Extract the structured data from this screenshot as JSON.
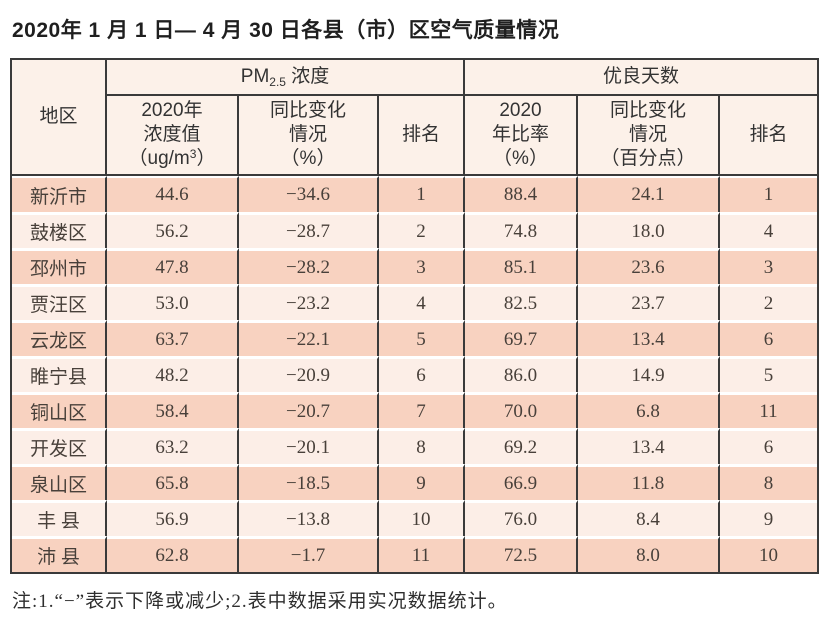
{
  "title": "2020年 1 月 1 日— 4 月 30 日各县（市）区空气质量情况",
  "note": "注:1.“−”表示下降或减少;2.表中数据采用实况数据统计。",
  "table": {
    "region_header": "地区",
    "groups": {
      "pm25": {
        "prefix": "PM",
        "subscript": "2.5",
        "suffix": " 浓度"
      },
      "good_days": "优良天数"
    },
    "subheaders": {
      "pm_value": {
        "line1": "2020年",
        "line2": "浓度值",
        "line3_pre": "（ug/m",
        "line3_sup": "3",
        "line3_post": "）"
      },
      "pm_change": {
        "line1": "同比变化",
        "line2": "情况",
        "line3": "（%）"
      },
      "pm_rank": "排名",
      "good_ratio": {
        "line1": "2020",
        "line2": "年比率",
        "line3": "（%）"
      },
      "good_change": {
        "line1": "同比变化",
        "line2": "情况",
        "line3": "（百分点）"
      },
      "good_rank": "排名"
    },
    "rows": [
      {
        "region": "新沂市",
        "pm_value": "44.6",
        "pm_change": "−34.6",
        "pm_rank": "1",
        "good_ratio": "88.4",
        "good_change": "24.1",
        "good_rank": "1"
      },
      {
        "region": "鼓楼区",
        "pm_value": "56.2",
        "pm_change": "−28.7",
        "pm_rank": "2",
        "good_ratio": "74.8",
        "good_change": "18.0",
        "good_rank": "4"
      },
      {
        "region": "邳州市",
        "pm_value": "47.8",
        "pm_change": "−28.2",
        "pm_rank": "3",
        "good_ratio": "85.1",
        "good_change": "23.6",
        "good_rank": "3"
      },
      {
        "region": "贾汪区",
        "pm_value": "53.0",
        "pm_change": "−23.2",
        "pm_rank": "4",
        "good_ratio": "82.5",
        "good_change": "23.7",
        "good_rank": "2"
      },
      {
        "region": "云龙区",
        "pm_value": "63.7",
        "pm_change": "−22.1",
        "pm_rank": "5",
        "good_ratio": "69.7",
        "good_change": "13.4",
        "good_rank": "6"
      },
      {
        "region": "睢宁县",
        "pm_value": "48.2",
        "pm_change": "−20.9",
        "pm_rank": "6",
        "good_ratio": "86.0",
        "good_change": "14.9",
        "good_rank": "5"
      },
      {
        "region": "铜山区",
        "pm_value": "58.4",
        "pm_change": "−20.7",
        "pm_rank": "7",
        "good_ratio": "70.0",
        "good_change": "6.8",
        "good_rank": "11"
      },
      {
        "region": "开发区",
        "pm_value": "63.2",
        "pm_change": "−20.1",
        "pm_rank": "8",
        "good_ratio": "69.2",
        "good_change": "13.4",
        "good_rank": "6"
      },
      {
        "region": "泉山区",
        "pm_value": "65.8",
        "pm_change": "−18.5",
        "pm_rank": "9",
        "good_ratio": "66.9",
        "good_change": "11.8",
        "good_rank": "8"
      },
      {
        "region": "丰 县",
        "pm_value": "56.9",
        "pm_change": "−13.8",
        "pm_rank": "10",
        "good_ratio": "76.0",
        "good_change": "8.4",
        "good_rank": "9"
      },
      {
        "region": "沛 县",
        "pm_value": "62.8",
        "pm_change": "−1.7",
        "pm_rank": "11",
        "good_ratio": "72.5",
        "good_change": "8.0",
        "good_rank": "10"
      }
    ]
  },
  "colors": {
    "row_odd_bg": "#f8d2c0",
    "row_even_bg": "#fceee7",
    "header_bg": "#fcf1e9",
    "border": "#3a3a3a",
    "text": "#48403a"
  }
}
